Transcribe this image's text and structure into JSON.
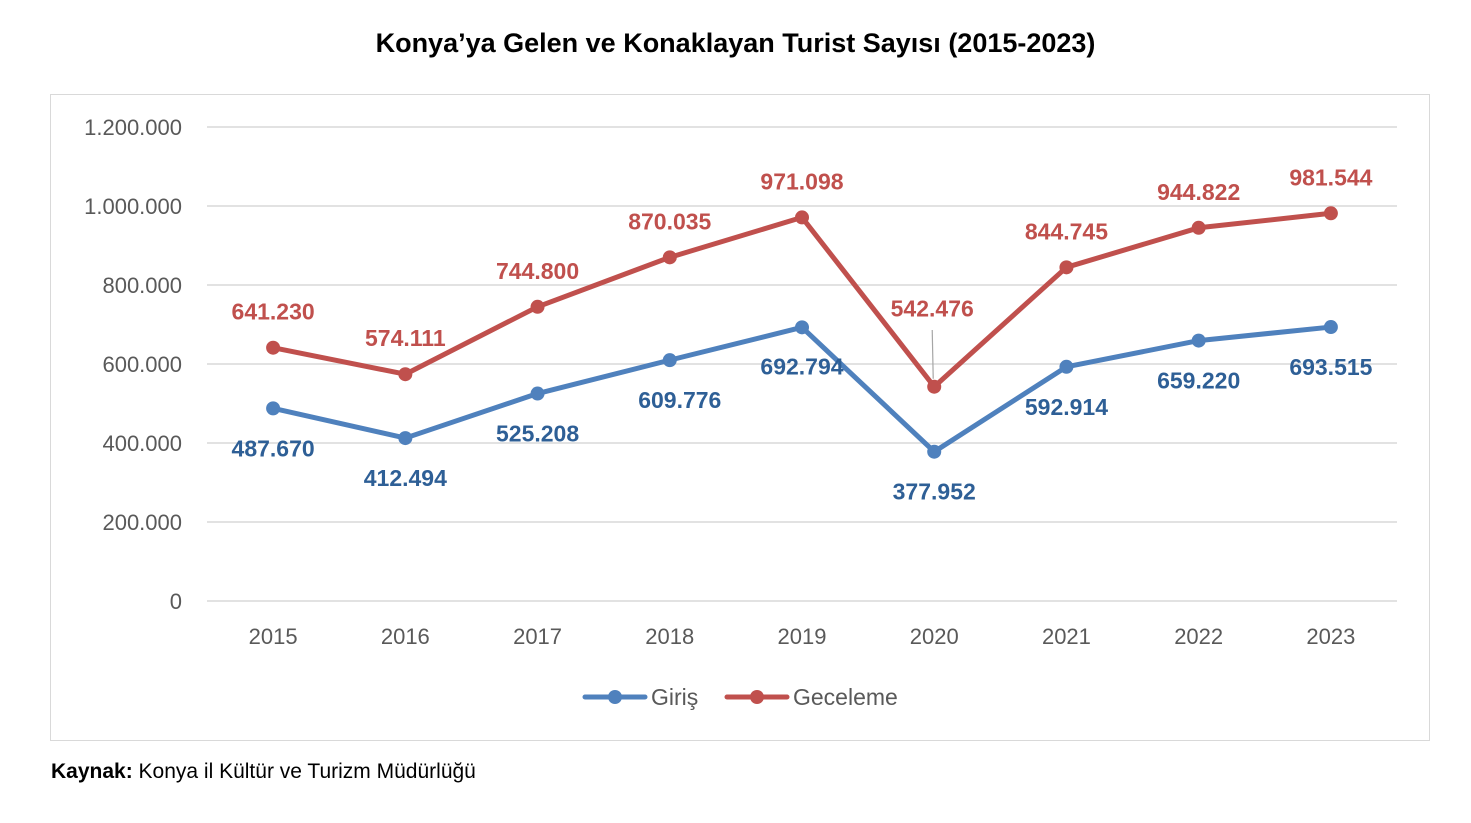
{
  "chart_data": {
    "type": "line",
    "title": "Konya’ya Gelen ve Konaklayan Turist Sayısı (2015-2023)",
    "xlabel": "",
    "ylabel": "",
    "ylim": [
      0,
      1200000
    ],
    "yticks": [
      "0",
      "200.000",
      "400.000",
      "600.000",
      "800.000",
      "1.000.000",
      "1.200.000"
    ],
    "ytick_values": [
      0,
      200000,
      400000,
      600000,
      800000,
      1000000,
      1200000
    ],
    "categories": [
      "2015",
      "2016",
      "2017",
      "2018",
      "2019",
      "2020",
      "2021",
      "2022",
      "2023"
    ],
    "grid": "horizontal",
    "legend": "bottom",
    "series": [
      {
        "name": "Giriş",
        "color": "#4f81bd",
        "label_color": "#2e5f96",
        "values": [
          487670,
          412494,
          525208,
          609776,
          692794,
          377952,
          592914,
          659220,
          693515
        ],
        "labels": [
          "487.670",
          "412.494",
          "525.208",
          "609.776",
          "692.794",
          "377.952",
          "592.914",
          "659.220",
          "693.515"
        ]
      },
      {
        "name": "Geceleme",
        "color": "#c0504d",
        "label_color": "#c0504d",
        "values": [
          641230,
          574111,
          744800,
          870035,
          971098,
          542476,
          844745,
          944822,
          981544
        ],
        "labels": [
          "641.230",
          "574.111",
          "744.800",
          "870.035",
          "971.098",
          "542.476",
          "844.745",
          "944.822",
          "981.544"
        ]
      }
    ]
  },
  "source": {
    "label": "Kaynak:",
    "text": " Konya il Kültür ve Turizm Müdürlüğü"
  }
}
